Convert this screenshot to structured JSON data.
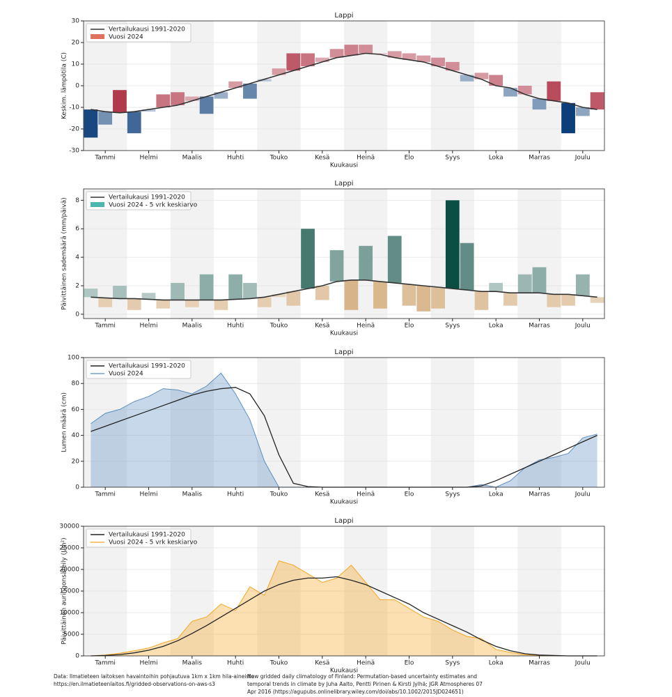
{
  "chart_data": [
    {
      "type": "bar",
      "title": "Lappi",
      "x_label": "Kuukausi",
      "y_label": "Keskim. lämpötila (C)",
      "categories": [
        null,
        "Tammi",
        null,
        null,
        "Helmi",
        null,
        null,
        "Maalis",
        null,
        null,
        "Huhti",
        null,
        null,
        "Touko",
        null,
        null,
        "Kesä",
        null,
        null,
        "Heinä",
        null,
        null,
        "Elo",
        null,
        null,
        "Syys",
        null,
        null,
        "Loka",
        null,
        null,
        "Marras",
        null,
        null,
        "Joulu",
        null
      ],
      "ylim": [
        -30,
        30
      ],
      "yticks": [
        -30,
        -20,
        -10,
        0,
        10,
        20,
        30
      ],
      "grid": true,
      "legend": "upper-left",
      "series": [
        {
          "name": "Vertailukausi 1991-2020",
          "color": "#333333",
          "values": [
            -11,
            -12,
            -12.5,
            -12,
            -11,
            -10,
            -9,
            -7,
            -5,
            -3,
            -1,
            1,
            3,
            5,
            7,
            9,
            11,
            13,
            14,
            15,
            14.5,
            13,
            12,
            11,
            9,
            7,
            5,
            3,
            0,
            -1,
            -4,
            -6,
            -7,
            -8,
            -10,
            -11
          ]
        },
        {
          "name": "Vuosi 2024",
          "color": "#e07060",
          "color_above": "#9e0b22",
          "color_below": "#0c3e7a",
          "values": [
            -24,
            -18,
            -2,
            -22,
            -12,
            -4,
            -3,
            -5,
            -13,
            -6,
            2,
            -6,
            2,
            8,
            15,
            15,
            13,
            17,
            19,
            19,
            15,
            16,
            15,
            14,
            13,
            11,
            2,
            6,
            5,
            -5,
            0,
            -11,
            2,
            -22,
            -14,
            -3
          ]
        }
      ]
    },
    {
      "type": "bar",
      "title": "Lappi",
      "x_label": "Kuukausi",
      "y_label": "Päivittäinen sademäärä (mm/päivä)",
      "categories": [
        null,
        "Tammi",
        null,
        null,
        "Helmi",
        null,
        null,
        "Maalis",
        null,
        null,
        "Huhti",
        null,
        null,
        "Touko",
        null,
        null,
        "Kesä",
        null,
        null,
        "Heinä",
        null,
        null,
        "Elo",
        null,
        null,
        "Syys",
        null,
        null,
        "Loka",
        null,
        null,
        "Marras",
        null,
        null,
        "Joulu",
        null
      ],
      "ylim": [
        -0.3,
        8.8
      ],
      "yticks": [
        0,
        2,
        4,
        6,
        8
      ],
      "grid": true,
      "legend": "upper-left",
      "series": [
        {
          "name": "Vertailukausi 1991-2020",
          "color": "#333333",
          "values": [
            1.2,
            1.15,
            1.1,
            1.1,
            1.05,
            1.0,
            1.0,
            1.0,
            1.0,
            1.0,
            1.05,
            1.1,
            1.2,
            1.4,
            1.6,
            1.8,
            2.0,
            2.3,
            2.4,
            2.4,
            2.3,
            2.2,
            2.1,
            2.0,
            1.9,
            1.8,
            1.7,
            1.6,
            1.6,
            1.5,
            1.5,
            1.5,
            1.4,
            1.4,
            1.3,
            1.2
          ]
        },
        {
          "name": "Vuosi 2024 - 5 vrk keskiarvo",
          "color": "#4db6ac",
          "color_above": "#0b4f44",
          "color_below": "#b06a14",
          "values": [
            1.8,
            0.5,
            2.0,
            0.3,
            1.5,
            0.4,
            2.2,
            0.5,
            2.8,
            0.3,
            2.8,
            2.2,
            0.5,
            1.2,
            0.6,
            6.0,
            1.0,
            4.5,
            0.3,
            4.8,
            0.4,
            5.5,
            0.6,
            0.2,
            0.4,
            8.0,
            5.0,
            0.3,
            2.2,
            0.6,
            2.8,
            3.3,
            0.5,
            0.6,
            2.8,
            0.8
          ]
        }
      ]
    },
    {
      "type": "area",
      "title": "Lappi",
      "x_label": "Kuukausi",
      "y_label": "Lumen määrä (cm)",
      "categories": [
        null,
        "Tammi",
        null,
        null,
        "Helmi",
        null,
        null,
        "Maalis",
        null,
        null,
        "Huhti",
        null,
        null,
        "Touko",
        null,
        null,
        "Kesä",
        null,
        null,
        "Heinä",
        null,
        null,
        "Elo",
        null,
        null,
        "Syys",
        null,
        null,
        "Loka",
        null,
        null,
        "Marras",
        null,
        null,
        "Joulu",
        null
      ],
      "ylim": [
        0,
        100
      ],
      "yticks": [
        0,
        20,
        40,
        60,
        80,
        100
      ],
      "grid": true,
      "legend": "upper-left",
      "series": [
        {
          "name": "Vertailukausi 1991-2020",
          "color": "#222222",
          "values": [
            43,
            47,
            51,
            55,
            59,
            63,
            67,
            71,
            74,
            76,
            77,
            72,
            55,
            25,
            3,
            0.5,
            0,
            0,
            0,
            0,
            0,
            0,
            0,
            0,
            0,
            0,
            0,
            1,
            5,
            10,
            15,
            20,
            25,
            30,
            35,
            40
          ]
        },
        {
          "name": "Vuosi 2024",
          "color": "#5b8fc0",
          "values": [
            49,
            57,
            60,
            66,
            70,
            76,
            75,
            72,
            78,
            88,
            72,
            52,
            20,
            0,
            0,
            0,
            0,
            0,
            0,
            0,
            0,
            0,
            0,
            0,
            0,
            0,
            0,
            2,
            0,
            5,
            15,
            21,
            23,
            26,
            38,
            41
          ]
        }
      ]
    },
    {
      "type": "area",
      "title": "Lappi",
      "x_label": "Kuukausi",
      "y_label": "Päivittäinen auringonsäteily (J/m²)",
      "categories": [
        null,
        "Tammi",
        null,
        null,
        "Helmi",
        null,
        null,
        "Maalis",
        null,
        null,
        "Huhti",
        null,
        null,
        "Touko",
        null,
        null,
        "Kesä",
        null,
        null,
        "Heinä",
        null,
        null,
        "Elo",
        null,
        null,
        "Syys",
        null,
        null,
        "Loka",
        null,
        null,
        "Marras",
        null,
        null,
        "Joulu",
        null
      ],
      "ylim": [
        0,
        30000
      ],
      "yticks": [
        0,
        5000,
        10000,
        15000,
        20000,
        25000,
        30000
      ],
      "grid": true,
      "legend": "upper-left",
      "series": [
        {
          "name": "Vertailukausi 1991-2020",
          "color": "#222222",
          "values": [
            0,
            100,
            300,
            700,
            1300,
            2200,
            3500,
            5200,
            7000,
            9000,
            11000,
            13000,
            15000,
            16500,
            17500,
            18000,
            18000,
            18300,
            17500,
            16500,
            15000,
            13500,
            12000,
            10000,
            8500,
            7000,
            5500,
            3700,
            2200,
            1200,
            500,
            200,
            100,
            0,
            0,
            0
          ]
        },
        {
          "name": "Vuosi 2024 - 5 vrk keskiarvo",
          "color": "#f5a623",
          "values": [
            0,
            200,
            600,
            1200,
            1800,
            3000,
            4000,
            8000,
            9000,
            12000,
            10500,
            16000,
            14000,
            22000,
            21000,
            19000,
            17000,
            18000,
            21000,
            17000,
            13000,
            13000,
            11000,
            9000,
            8000,
            6000,
            4500,
            4000,
            1500,
            800,
            300,
            100,
            0,
            0,
            0,
            0
          ]
        }
      ]
    }
  ],
  "footer": {
    "left": [
      "Data: Ilmatieteen laitoksen havaintoihin pohjautuva 1km x 1km hila-aineisto",
      "https://en.ilmatieteenlaitos.fi/gridded-observations-on-aws-s3"
    ],
    "right": [
      "New gridded daily climatology of Finland: Permutation-based uncertainty estimates and",
      "temporal trends in climate by Juha Aalto, Pentti Pirinen & Kirsti Jylhä; JGR Atmospheres 07",
      "Apr 2016 (https://agupubs.onlinelibrary.wiley.com/doi/abs/10.1002/2015JD024651)"
    ]
  }
}
